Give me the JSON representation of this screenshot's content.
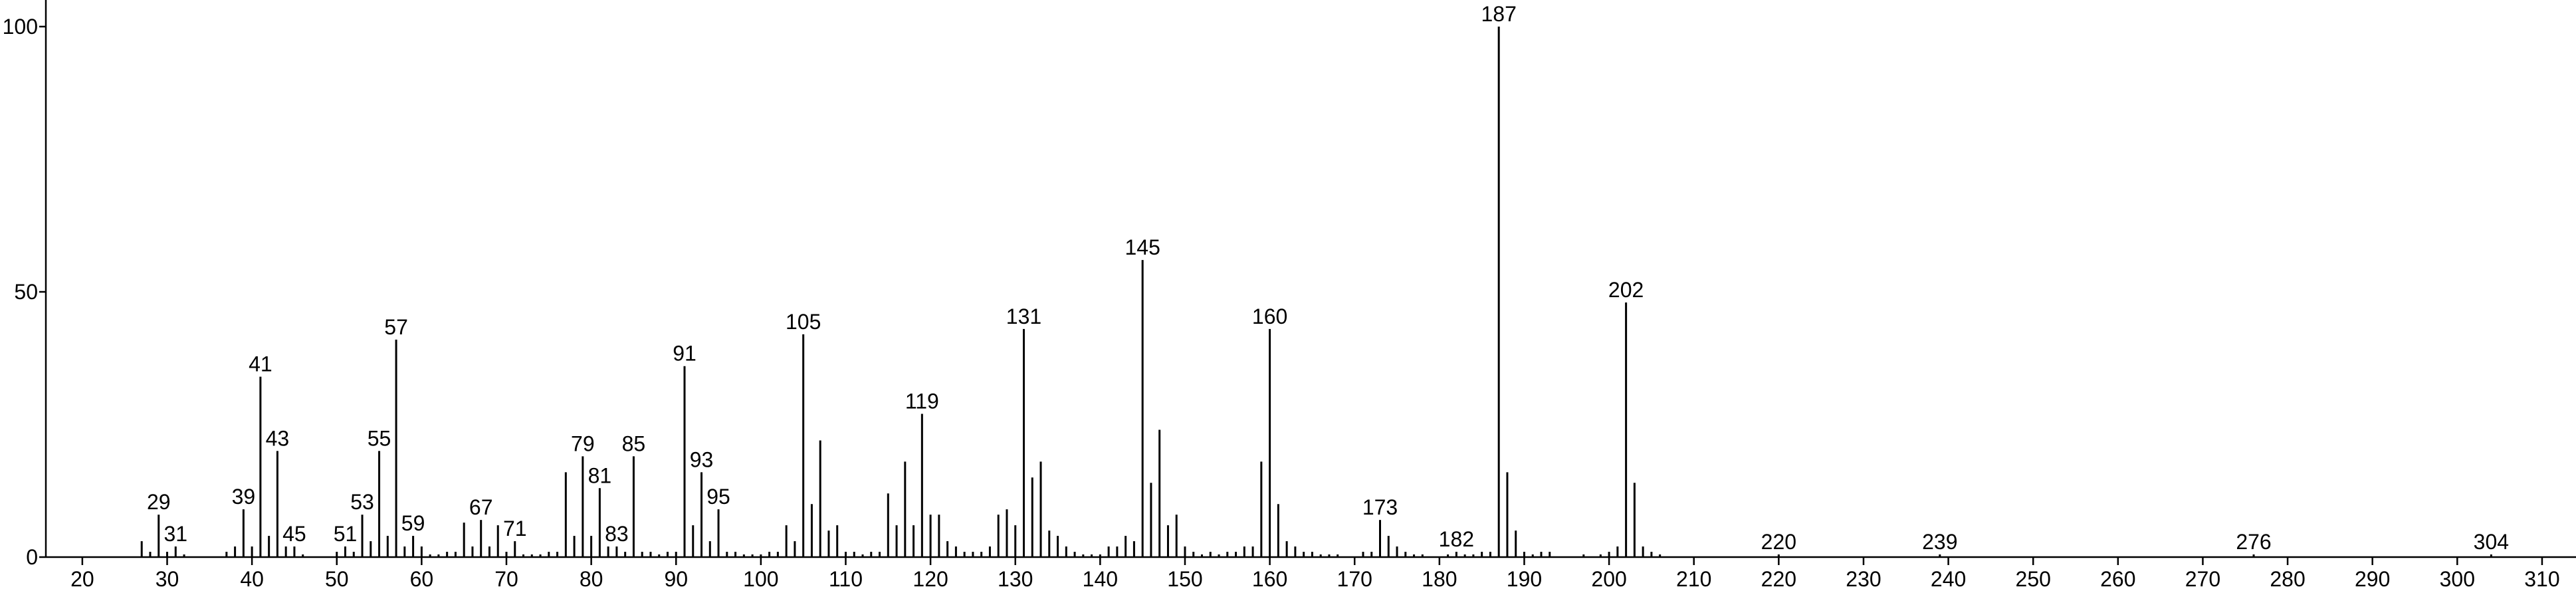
{
  "chart_data": {
    "type": "stick",
    "x": [
      27,
      28,
      29,
      30,
      31,
      32,
      37,
      38,
      39,
      40,
      41,
      42,
      43,
      44,
      45,
      46,
      50,
      51,
      52,
      53,
      54,
      55,
      56,
      57,
      58,
      59,
      60,
      61,
      62,
      63,
      64,
      65,
      66,
      67,
      68,
      69,
      70,
      71,
      72,
      73,
      74,
      75,
      76,
      77,
      78,
      79,
      80,
      81,
      82,
      83,
      84,
      85,
      86,
      87,
      88,
      89,
      90,
      91,
      92,
      93,
      94,
      95,
      96,
      97,
      98,
      99,
      100,
      101,
      102,
      103,
      104,
      105,
      106,
      107,
      108,
      109,
      110,
      111,
      112,
      113,
      114,
      115,
      116,
      117,
      118,
      119,
      120,
      121,
      122,
      123,
      124,
      125,
      126,
      127,
      128,
      129,
      130,
      131,
      132,
      133,
      134,
      135,
      136,
      137,
      138,
      139,
      140,
      141,
      142,
      143,
      144,
      145,
      146,
      147,
      148,
      149,
      150,
      151,
      152,
      153,
      154,
      155,
      156,
      157,
      158,
      159,
      160,
      161,
      162,
      163,
      164,
      165,
      166,
      167,
      168,
      171,
      172,
      173,
      174,
      175,
      176,
      177,
      178,
      181,
      182,
      183,
      184,
      185,
      186,
      187,
      188,
      189,
      190,
      191,
      192,
      193,
      197,
      199,
      200,
      201,
      202,
      203,
      204,
      205,
      206,
      220,
      239,
      276,
      304
    ],
    "values": [
      3,
      1,
      8,
      1,
      2,
      0.5,
      1,
      2,
      9,
      2,
      34,
      4,
      20,
      2,
      2,
      0.5,
      1,
      2,
      1,
      8,
      3,
      20,
      4,
      41,
      2,
      4,
      2,
      0.5,
      0.5,
      1,
      1,
      6.5,
      2,
      7,
      2,
      6,
      1,
      3,
      0.5,
      0.5,
      0.5,
      1,
      1,
      16,
      4,
      19,
      4,
      13,
      2,
      2,
      1,
      19,
      1,
      1,
      0.5,
      1,
      1,
      36,
      6,
      16,
      3,
      9,
      1,
      1,
      0.5,
      0.5,
      0.5,
      1,
      1,
      6,
      3,
      42,
      10,
      22,
      5,
      6,
      1,
      1,
      0.5,
      1,
      1,
      12,
      6,
      18,
      6,
      27,
      8,
      8,
      3,
      2,
      1,
      1,
      1,
      2,
      8,
      9,
      6,
      43,
      15,
      18,
      5,
      4,
      2,
      1,
      0.5,
      0.5,
      0.5,
      2,
      2,
      4,
      3,
      56,
      14,
      24,
      6,
      8,
      2,
      1,
      0.5,
      1,
      0.5,
      1,
      1,
      2,
      2,
      18,
      43,
      10,
      3,
      2,
      1,
      1,
      0.5,
      0.5,
      0.5,
      1,
      1,
      7,
      4,
      2,
      1,
      0.5,
      0.5,
      0.5,
      1,
      0.5,
      0.5,
      1,
      1,
      100,
      16,
      5,
      1,
      0.5,
      1,
      1,
      0.5,
      0.5,
      1,
      2,
      48,
      14,
      2,
      1,
      0.5,
      0.5,
      0.5,
      0.5,
      0.5
    ],
    "annotations": [
      29,
      31,
      39,
      41,
      43,
      45,
      51,
      53,
      55,
      57,
      59,
      67,
      71,
      79,
      81,
      83,
      85,
      91,
      93,
      95,
      105,
      119,
      131,
      145,
      160,
      173,
      182,
      187,
      202,
      220,
      239,
      276,
      304
    ],
    "color": "#000000",
    "xlim": [
      15.7,
      314
    ],
    "ylim": [
      0,
      100
    ],
    "xticks": [
      20,
      30,
      40,
      50,
      60,
      70,
      80,
      90,
      100,
      110,
      120,
      130,
      140,
      150,
      160,
      170,
      180,
      190,
      200,
      210,
      220,
      230,
      240,
      250,
      260,
      270,
      280,
      290,
      300,
      310
    ],
    "yticks": [
      0,
      50,
      100
    ]
  }
}
